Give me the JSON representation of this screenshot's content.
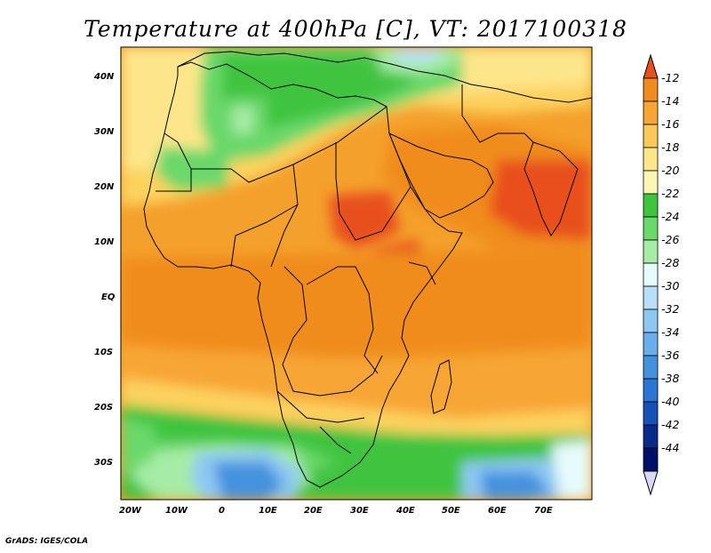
{
  "title": "Temperature at 400hPa [C], VT: 2017100318",
  "credit": "GrADS: IGES/COLA",
  "map": {
    "lat_labels": [
      "40N",
      "30N",
      "20N",
      "10N",
      "EQ",
      "10S",
      "20S",
      "30S"
    ],
    "lon_labels": [
      "20W",
      "10W",
      "0",
      "10E",
      "20E",
      "30E",
      "40E",
      "50E",
      "60E",
      "70E"
    ]
  },
  "colorbar": {
    "labels": [
      "-12",
      "-14",
      "-16",
      "-18",
      "-20",
      "-22",
      "-24",
      "-26",
      "-28",
      "-30",
      "-32",
      "-34",
      "-36",
      "-38",
      "-40",
      "-42",
      "-44"
    ],
    "colors": [
      "#e8501e",
      "#f08c1e",
      "#f7a634",
      "#fbc85a",
      "#fde68a",
      "#fdf6b2",
      "#3fc43f",
      "#6ad86a",
      "#a6eca6",
      "#e6fbfb",
      "#b8dff8",
      "#8ec8f2",
      "#6aaeea",
      "#4492de",
      "#2a74d2",
      "#1652b4",
      "#0a2a8a",
      "#00106a",
      "#dad6fa"
    ]
  }
}
